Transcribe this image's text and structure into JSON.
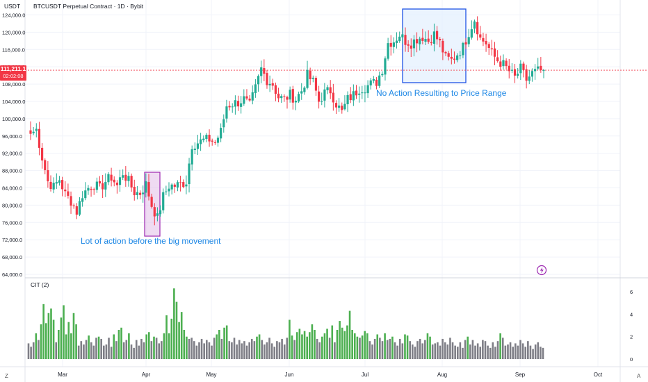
{
  "header": {
    "currency": "USDT",
    "title": "BTCUSDT Perpetual Contract · 1D · Bybit",
    "price_tag": {
      "price": "111,211.1",
      "countdown": "02:02:08"
    }
  },
  "annotations": {
    "left_note": "Lot of action before the big movement",
    "right_note": "No Action Resulting to Price Range"
  },
  "indicator": {
    "name": "CIT (2)"
  },
  "bottom_bar": {
    "left_icon": "Z",
    "right_icon": "A",
    "lightning_icon": "lightning-icon"
  },
  "colors": {
    "up": "#22ab94",
    "down": "#f23645",
    "last_price": "#f23645",
    "cit_high": "#4caf50",
    "cit_low": "#7e7e86",
    "box_left_stroke": "#9c27b0",
    "box_left_fill": "#e1bee7",
    "box_right_stroke": "#1e53e5",
    "box_right_fill": "#e3effd",
    "note_text": "#1e88e5",
    "grid": "#f0f3fa"
  },
  "chart_data": [
    {
      "type": "candlestick",
      "title": "BTCUSDT Perpetual Contract · 1D · Bybit",
      "ylabel": "USDT",
      "ylim": [
        64000,
        126000
      ],
      "yticks": [
        "64,000.0",
        "68,000.0",
        "72,000.0",
        "76,000.0",
        "80,000.0",
        "84,000.0",
        "88,000.0",
        "92,000.0",
        "96,000.0",
        "100,000.0",
        "104,000.0",
        "108,000.0",
        "112,000.0",
        "116,000.0",
        "120,000.0",
        "124,000.0"
      ],
      "xticks": [
        "Mar",
        "Apr",
        "May",
        "Jun",
        "Jul",
        "Aug",
        "Sep",
        "Oct"
      ],
      "last_price": 111211.1,
      "grid": true,
      "close_anchors": [
        [
          0,
          96500
        ],
        [
          2,
          97500
        ],
        [
          4,
          91000
        ],
        [
          6,
          85500
        ],
        [
          8,
          84200
        ],
        [
          10,
          86000
        ],
        [
          12,
          82500
        ],
        [
          14,
          81000
        ],
        [
          16,
          78500
        ],
        [
          18,
          82500
        ],
        [
          20,
          84000
        ],
        [
          22,
          84800
        ],
        [
          24,
          83800
        ],
        [
          26,
          85500
        ],
        [
          28,
          86500
        ],
        [
          30,
          84500
        ],
        [
          32,
          87500
        ],
        [
          34,
          85500
        ],
        [
          36,
          83000
        ],
        [
          38,
          82800
        ],
        [
          40,
          84800
        ],
        [
          42,
          80000
        ],
        [
          44,
          77000
        ],
        [
          46,
          82000
        ],
        [
          48,
          84500
        ],
        [
          50,
          84500
        ],
        [
          52,
          84800
        ],
        [
          54,
          85500
        ],
        [
          56,
          94000
        ],
        [
          58,
          94500
        ],
        [
          60,
          95000
        ],
        [
          62,
          95200
        ],
        [
          64,
          94500
        ],
        [
          66,
          97000
        ],
        [
          68,
          103000
        ],
        [
          70,
          103500
        ],
        [
          72,
          103800
        ],
        [
          74,
          104500
        ],
        [
          76,
          103000
        ],
        [
          78,
          107000
        ],
        [
          80,
          111500
        ],
        [
          82,
          109000
        ],
        [
          84,
          108000
        ],
        [
          86,
          105000
        ],
        [
          88,
          104500
        ],
        [
          90,
          105500
        ],
        [
          92,
          104500
        ],
        [
          94,
          106500
        ],
        [
          96,
          110000
        ],
        [
          98,
          108500
        ],
        [
          100,
          104000
        ],
        [
          102,
          106000
        ],
        [
          104,
          106500
        ],
        [
          106,
          103500
        ],
        [
          108,
          101500
        ],
        [
          110,
          104500
        ],
        [
          112,
          105500
        ],
        [
          114,
          107000
        ],
        [
          116,
          107300
        ],
        [
          118,
          108000
        ],
        [
          120,
          108500
        ],
        [
          122,
          111500
        ],
        [
          124,
          117500
        ],
        [
          126,
          118000
        ],
        [
          128,
          119500
        ],
        [
          130,
          118000
        ],
        [
          132,
          117500
        ],
        [
          134,
          118500
        ],
        [
          136,
          119000
        ],
        [
          138,
          118000
        ],
        [
          140,
          119500
        ],
        [
          142,
          117500
        ],
        [
          144,
          114000
        ],
        [
          146,
          113500
        ],
        [
          148,
          115000
        ],
        [
          150,
          116500
        ],
        [
          152,
          120000
        ],
        [
          154,
          123000
        ],
        [
          156,
          118500
        ],
        [
          158,
          117500
        ],
        [
          160,
          115000
        ],
        [
          162,
          113500
        ],
        [
          164,
          112500
        ],
        [
          166,
          111000
        ],
        [
          168,
          109500
        ],
        [
          170,
          111500
        ],
        [
          172,
          109000
        ],
        [
          174,
          110500
        ],
        [
          176,
          111000
        ],
        [
          178,
          111211
        ]
      ]
    },
    {
      "type": "bar",
      "title": "CIT (2)",
      "ylim": [
        0,
        6.5
      ],
      "yticks": [
        "0",
        "2",
        "4",
        "6"
      ],
      "values": [
        1.4,
        1.1,
        1.5,
        2.3,
        1.7,
        3.1,
        4.9,
        3.2,
        4.1,
        4.5,
        3.5,
        1.5,
        2.6,
        3.7,
        4.8,
        2.2,
        3.3,
        2.3,
        4.1,
        3.1,
        1.2,
        1.6,
        1.3,
        1.7,
        2.1,
        1.5,
        1.2,
        1.9,
        2.0,
        1.8,
        1.2,
        1.3,
        1.9,
        1.1,
        2.2,
        1.6,
        2.6,
        2.8,
        1.5,
        1.7,
        2.3,
        1.3,
        1.0,
        1.7,
        1.2,
        1.8,
        1.5,
        2.2,
        2.4,
        1.6,
        2.0,
        1.9,
        1.4,
        1.6,
        2.3,
        3.9,
        2.3,
        3.6,
        6.3,
        5.1,
        3.3,
        4.2,
        2.6,
        2.0,
        1.8,
        1.9,
        1.6,
        1.2,
        1.5,
        1.8,
        1.4,
        1.7,
        1.5,
        1.2,
        1.9,
        2.2,
        2.6,
        1.8,
        2.8,
        3.0,
        1.6,
        1.5,
        1.9,
        1.3,
        1.7,
        1.4,
        1.6,
        1.2,
        1.5,
        1.8,
        1.6,
        2.0,
        2.2,
        1.7,
        1.3,
        1.5,
        1.9,
        1.4,
        1.1,
        1.6,
        1.5,
        1.8,
        1.3,
        1.9,
        3.5,
        2.1,
        1.7,
        2.4,
        2.7,
        2.2,
        2.5,
        2.0,
        2.4,
        3.1,
        2.6,
        1.8,
        1.5,
        2.0,
        2.3,
        2.7,
        1.9,
        3.0,
        1.5,
        2.6,
        3.4,
        2.8,
        2.5,
        3.0,
        4.3,
        2.6,
        2.3,
        2.0,
        1.9,
        2.1,
        2.5,
        2.3,
        1.6,
        1.3,
        1.8,
        2.2,
        1.9,
        1.6,
        2.3,
        1.7,
        1.8,
        2.0,
        1.5,
        1.2,
        1.8,
        1.4,
        2.2,
        2.1,
        1.6,
        1.3,
        1.1,
        1.6,
        1.8,
        1.4,
        1.7,
        2.3,
        2.0,
        1.3,
        1.4,
        1.5,
        1.2,
        1.8,
        1.5,
        1.3,
        1.9,
        1.5,
        1.2,
        1.1,
        1.5,
        1.0,
        1.7,
        2.0,
        1.3,
        1.7,
        1.2,
        1.4,
        1.1,
        1.7,
        1.6,
        1.2,
        1.0,
        1.5,
        1.1,
        1.6,
        2.3,
        1.9,
        1.2,
        1.3,
        1.5,
        1.1,
        1.4,
        1.2,
        1.7,
        1.4,
        1.1,
        1.6,
        1.2,
        0.9,
        1.3,
        1.5,
        1.1,
        1.0
      ]
    }
  ]
}
